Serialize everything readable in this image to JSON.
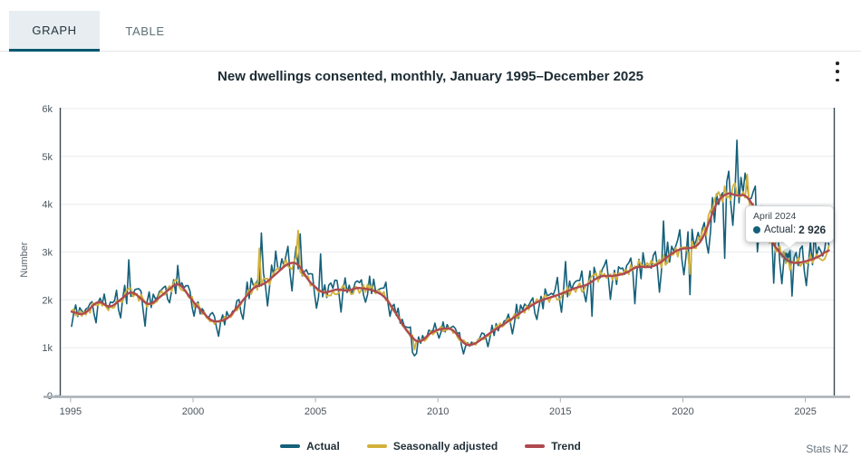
{
  "tabs": [
    {
      "label": "GRAPH",
      "active": true
    },
    {
      "label": "TABLE",
      "active": false
    }
  ],
  "header": {
    "title": "New dwellings consented, monthly, January 1995–December 2025",
    "menu_icon": "kebab-vertical-icon"
  },
  "tooltip": {
    "date": "April 2024",
    "series_label": "Actual:",
    "value": "2 926"
  },
  "legend": [
    {
      "label": "Actual",
      "color": "#15607a"
    },
    {
      "label": "Seasonally adjusted",
      "color": "#d2b13a"
    },
    {
      "label": "Trend",
      "color": "#b0494f"
    }
  ],
  "footer": {
    "source": "Stats NZ"
  },
  "chart_data": {
    "type": "line",
    "title": "New dwellings consented, monthly, January 1995–December 2025",
    "xlabel": "",
    "ylabel": "Number",
    "x_ticks": [
      1995,
      2000,
      2005,
      2010,
      2015,
      2020,
      2025
    ],
    "y_tick_labels": [
      "0",
      "1k",
      "2k",
      "3k",
      "4k",
      "5k",
      "6k"
    ],
    "ylim": [
      0,
      6000
    ],
    "xlim": [
      1994.56,
      2026.2
    ],
    "grid": "horizontal",
    "legend_position": "bottom",
    "frequency": "monthly",
    "x_range_months": [
      "1995-01",
      "2025-12"
    ],
    "series": [
      {
        "name": "Actual",
        "color": "#15607a",
        "width": 1.6
      },
      {
        "name": "Seasonally adjusted",
        "color": "#d2b13a",
        "width": 1.8
      },
      {
        "name": "Trend",
        "color": "#b0494f",
        "width": 2.4
      }
    ],
    "trend_anchors": [
      [
        1995.0,
        1780
      ],
      [
        1995.5,
        1670
      ],
      [
        1996.15,
        2000
      ],
      [
        1996.6,
        1820
      ],
      [
        1997.5,
        2200
      ],
      [
        1998.2,
        1870
      ],
      [
        1999.4,
        2380
      ],
      [
        2000.1,
        1900
      ],
      [
        2000.8,
        1530
      ],
      [
        2001.4,
        1590
      ],
      [
        2002.5,
        2280
      ],
      [
        2002.9,
        2320
      ],
      [
        2003.9,
        2780
      ],
      [
        2004.3,
        2770
      ],
      [
        2004.7,
        2400
      ],
      [
        2005.3,
        2130
      ],
      [
        2005.9,
        2230
      ],
      [
        2006.3,
        2180
      ],
      [
        2006.7,
        2260
      ],
      [
        2007.3,
        2210
      ],
      [
        2007.8,
        2090
      ],
      [
        2008.1,
        1870
      ],
      [
        2008.7,
        1360
      ],
      [
        2009.2,
        1080
      ],
      [
        2009.8,
        1350
      ],
      [
        2010.4,
        1420
      ],
      [
        2010.7,
        1350
      ],
      [
        2011.1,
        1040
      ],
      [
        2011.5,
        1070
      ],
      [
        2012.1,
        1300
      ],
      [
        2012.9,
        1560
      ],
      [
        2013.5,
        1780
      ],
      [
        2014.1,
        1970
      ],
      [
        2015.0,
        2120
      ],
      [
        2015.6,
        2250
      ],
      [
        2016.1,
        2310
      ],
      [
        2016.6,
        2500
      ],
      [
        2017.2,
        2500
      ],
      [
        2017.7,
        2560
      ],
      [
        2018.1,
        2700
      ],
      [
        2018.7,
        2680
      ],
      [
        2019.1,
        2780
      ],
      [
        2019.5,
        2960
      ],
      [
        2019.9,
        3070
      ],
      [
        2020.5,
        3090
      ],
      [
        2020.8,
        3250
      ],
      [
        2021.4,
        4080
      ],
      [
        2021.8,
        4230
      ],
      [
        2022.0,
        4250
      ],
      [
        2022.2,
        4140
      ],
      [
        2022.5,
        4240
      ],
      [
        2022.9,
        3960
      ],
      [
        2023.3,
        3480
      ],
      [
        2023.8,
        3080
      ],
      [
        2024.2,
        2840
      ],
      [
        2024.5,
        2760
      ],
      [
        2024.9,
        2790
      ],
      [
        2025.3,
        2850
      ],
      [
        2025.7,
        2940
      ],
      [
        2025.96,
        3080
      ]
    ],
    "seasonal_pattern": [
      -0.17,
      -0.03,
      0.09,
      -0.05,
      0.08,
      0.0,
      0.02,
      0.04,
      0.02,
      0.06,
      0.1,
      -0.06
    ],
    "noise": {
      "actual": 0.05,
      "seasonally_adjusted": 0.05,
      "seed": 42
    },
    "overrides": {
      "actual": {
        "1997-05": 2840,
        "1998-01": 1450,
        "1999-05": 2720,
        "2001-01": 1240,
        "2002-10": 3400,
        "2003-05": 3020,
        "2004-05": 3380,
        "2005-03": 2960,
        "2007-11": 2370,
        "2008-12": 900,
        "2009-01": 830,
        "2009-02": 880,
        "2011-01": 870,
        "2012-01": 1020,
        "2014-11": 2470,
        "2015-03": 2800,
        "2016-04": 1660,
        "2018-01": 1920,
        "2019-03": 3650,
        "2020-04": 2110,
        "2021-03": 4140,
        "2021-09": 2870,
        "2021-11": 4690,
        "2022-03": 5340,
        "2022-07": 4650,
        "2022-12": 4380,
        "2023-09": 2350,
        "2024-04": 2926,
        "2024-06": 2080,
        "2025-05": 3440,
        "2025-12": 3150
      },
      "seasonally_adjusted": {
        "2002-09": 3080,
        "2004-04": 3450,
        "2009-01": 960,
        "2020-04": 2540,
        "2022-02": 4440,
        "2022-08": 4620,
        "2024-05": 2620,
        "2025-12": 3120
      }
    },
    "hover_point": {
      "month": "2024-04",
      "series": "Actual",
      "value": 2926,
      "label": "April 2024"
    }
  }
}
